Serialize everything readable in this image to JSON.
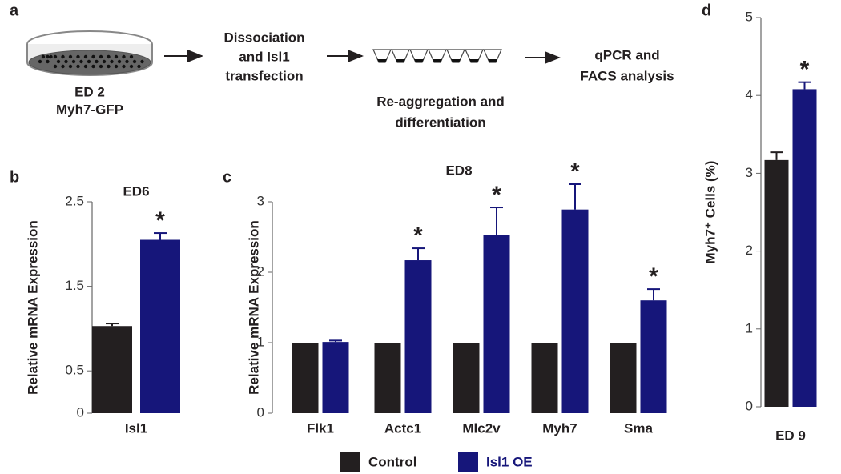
{
  "panel_labels": [
    "a",
    "b",
    "c",
    "d"
  ],
  "schematic": {
    "dish": [
      "ED 2",
      "Myh7-GFP"
    ],
    "step1": [
      "Dissociation",
      "and Isl1",
      "transfection"
    ],
    "step2": [
      "Re-aggregation and",
      "differentiation"
    ],
    "step3": [
      "qPCR and",
      "FACS analysis"
    ]
  },
  "chart_data": [
    {
      "type": "bar",
      "title": "ED6",
      "y_label": "Relative mRNA Expression",
      "categories": [
        "Isl1"
      ],
      "ylim": [
        0,
        2.5
      ],
      "yticks": [
        0,
        0.5,
        1.5,
        2.5
      ],
      "series": [
        {
          "color": "#231f20",
          "values": [
            1.03
          ],
          "errors": [
            0.03
          ]
        },
        {
          "color": "#16167a",
          "values": [
            2.05
          ],
          "errors": [
            0.08
          ]
        }
      ],
      "annotations": [
        "*"
      ]
    },
    {
      "type": "bar",
      "title": "ED8",
      "y_label": "Relative mRNA Expression",
      "categories": [
        "Flk1",
        "Actc1",
        "Mlc2v",
        "Myh7",
        "Sma"
      ],
      "ylim": [
        0,
        3
      ],
      "yticks": [
        0,
        1,
        2,
        3
      ],
      "series": [
        {
          "name": "Control",
          "color": "#231f20",
          "values": [
            1.0,
            0.99,
            1.0,
            0.99,
            1.0
          ],
          "errors": [
            0,
            0,
            0,
            0,
            0
          ]
        },
        {
          "name": "Isl1 OE",
          "color": "#16167a",
          "values": [
            1.01,
            2.17,
            2.53,
            2.89,
            1.6
          ],
          "errors": [
            0.02,
            0.17,
            0.39,
            0.36,
            0.16
          ]
        }
      ],
      "annotations": [
        null,
        "*",
        "*",
        "*",
        "*"
      ]
    },
    {
      "type": "bar",
      "y_label": "Myh7⁺ Cells (%)",
      "categories": [
        "ED 9"
      ],
      "ylim": [
        0,
        5
      ],
      "yticks": [
        0,
        1,
        2,
        3,
        4,
        5
      ],
      "series": [
        {
          "color": "#231f20",
          "values": [
            3.17
          ],
          "errors": [
            0.1
          ]
        },
        {
          "color": "#16167a",
          "values": [
            4.08
          ],
          "errors": [
            0.09
          ]
        }
      ],
      "annotations": [
        "*"
      ]
    }
  ]
}
